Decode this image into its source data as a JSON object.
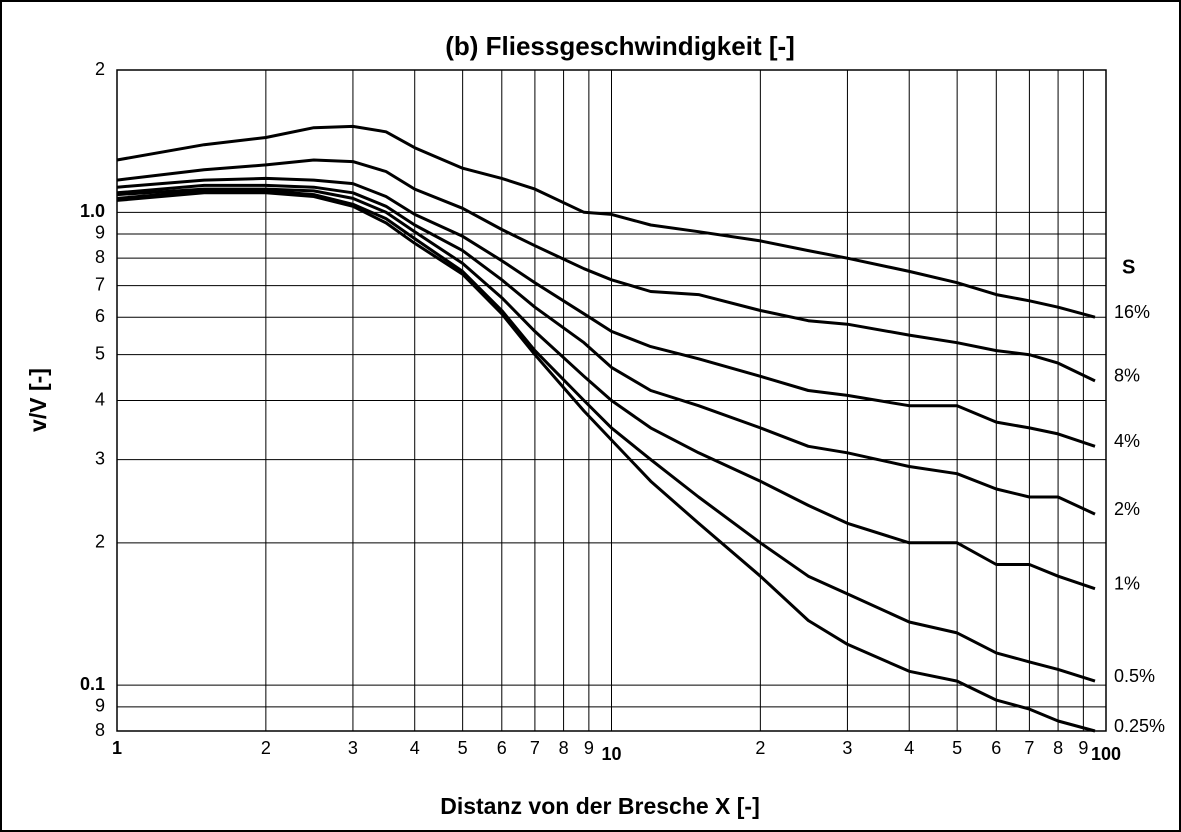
{
  "chart_data": {
    "type": "line",
    "title": "(b) Fliessgeschwindigkeit [-]",
    "x_label": "Distanz von der Bresche X [-]",
    "y_label": "v/V [-]",
    "legend_title": "s",
    "log_x": true,
    "log_y": true,
    "grid": true,
    "x": [
      1,
      1.5,
      2,
      2.5,
      3,
      3.5,
      4,
      5,
      6,
      7,
      8.8,
      10,
      12,
      15,
      20,
      25,
      30,
      40,
      50,
      60,
      70,
      80,
      95
    ],
    "xlim": [
      1,
      100
    ],
    "xticks": [
      1,
      {
        "value": 2,
        "label": "2"
      },
      {
        "value": 3,
        "label": "3"
      },
      {
        "value": 4,
        "label": "4"
      },
      {
        "value": 5,
        "label": "5"
      },
      {
        "value": 6,
        "label": "6"
      },
      {
        "value": 7,
        "label": "7"
      },
      {
        "value": 8,
        "label": "8"
      },
      {
        "value": 9,
        "label": "9"
      },
      10,
      {
        "value": 20,
        "label": "2"
      },
      {
        "value": 30,
        "label": "3"
      },
      {
        "value": 40,
        "label": "4"
      },
      {
        "value": 50,
        "label": "5"
      },
      {
        "value": 60,
        "label": "6"
      },
      {
        "value": 70,
        "label": "7"
      },
      {
        "value": 80,
        "label": "8"
      },
      {
        "value": 90,
        "label": "9"
      },
      100
    ],
    "ylim": [
      0.08,
      2
    ],
    "yticks": [
      2,
      {
        "value": 1,
        "label": "1.0"
      },
      {
        "value": 0.9,
        "label": "9"
      },
      {
        "value": 0.8,
        "label": "8"
      },
      {
        "value": 0.7,
        "label": "7"
      },
      {
        "value": 0.6,
        "label": "6"
      },
      {
        "value": 0.5,
        "label": "5"
      },
      {
        "value": 0.4,
        "label": "4"
      },
      {
        "value": 0.3,
        "label": "3"
      },
      {
        "value": 0.2,
        "label": "2"
      },
      0.1,
      {
        "value": 0.09,
        "label": "9"
      },
      {
        "value": 0.08,
        "label": "8"
      }
    ],
    "series": [
      {
        "name": "16%",
        "color": "#000000",
        "values": [
          1.29,
          1.39,
          1.44,
          1.51,
          1.52,
          1.48,
          1.37,
          1.24,
          1.18,
          1.12,
          1.0,
          0.99,
          0.94,
          0.91,
          0.87,
          0.83,
          0.8,
          0.75,
          0.71,
          0.67,
          0.65,
          0.63,
          0.6
        ]
      },
      {
        "name": "8%",
        "color": "#000000",
        "values": [
          1.17,
          1.23,
          1.26,
          1.29,
          1.28,
          1.22,
          1.12,
          1.02,
          0.92,
          0.85,
          0.76,
          0.72,
          0.68,
          0.67,
          0.62,
          0.59,
          0.58,
          0.55,
          0.53,
          0.51,
          0.5,
          0.48,
          0.44
        ]
      },
      {
        "name": "4%",
        "color": "#000000",
        "values": [
          1.13,
          1.17,
          1.18,
          1.17,
          1.15,
          1.08,
          0.99,
          0.89,
          0.79,
          0.71,
          0.61,
          0.56,
          0.52,
          0.49,
          0.45,
          0.42,
          0.41,
          0.39,
          0.39,
          0.36,
          0.35,
          0.34,
          0.32
        ]
      },
      {
        "name": "2%",
        "color": "#000000",
        "values": [
          1.1,
          1.14,
          1.14,
          1.13,
          1.1,
          1.03,
          0.94,
          0.83,
          0.72,
          0.63,
          0.53,
          0.47,
          0.42,
          0.39,
          0.35,
          0.32,
          0.31,
          0.29,
          0.28,
          0.26,
          0.25,
          0.25,
          0.23
        ]
      },
      {
        "name": "1%",
        "color": "#000000",
        "values": [
          1.09,
          1.12,
          1.12,
          1.11,
          1.07,
          1.0,
          0.91,
          0.78,
          0.66,
          0.56,
          0.45,
          0.4,
          0.35,
          0.31,
          0.27,
          0.24,
          0.22,
          0.2,
          0.2,
          0.18,
          0.18,
          0.17,
          0.16
        ]
      },
      {
        "name": "0.5%",
        "color": "#000000",
        "values": [
          1.07,
          1.11,
          1.11,
          1.09,
          1.04,
          0.97,
          0.88,
          0.75,
          0.62,
          0.51,
          0.4,
          0.35,
          0.3,
          0.25,
          0.2,
          0.17,
          0.156,
          0.136,
          0.129,
          0.117,
          0.112,
          0.108,
          0.102
        ]
      },
      {
        "name": "0.25%",
        "color": "#000000",
        "values": [
          1.06,
          1.1,
          1.1,
          1.08,
          1.03,
          0.95,
          0.86,
          0.74,
          0.61,
          0.5,
          0.38,
          0.33,
          0.27,
          0.22,
          0.17,
          0.137,
          0.122,
          0.107,
          0.102,
          0.093,
          0.089,
          0.084,
          0.08
        ]
      }
    ]
  }
}
